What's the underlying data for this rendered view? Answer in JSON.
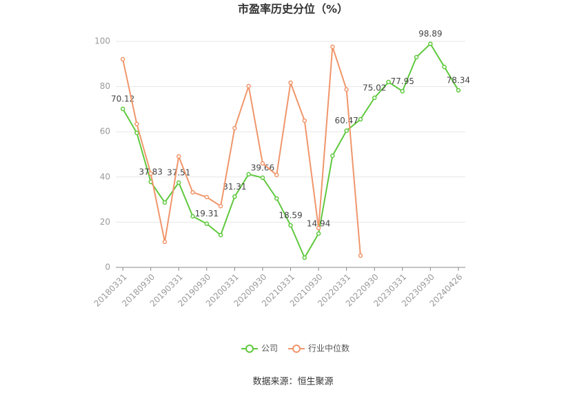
{
  "chart_data": {
    "type": "line",
    "title": "市盈率历史分位（%）",
    "categories": [
      "20180331",
      null,
      "20180930",
      null,
      "20190331",
      null,
      "20190930",
      null,
      "20200331",
      null,
      "20200930",
      null,
      "20210331",
      null,
      "20210930",
      null,
      "20220331",
      null,
      "20220930",
      null,
      "20230331",
      null,
      "20230930",
      null,
      "20240426"
    ],
    "series": [
      {
        "name": "公司",
        "color": "#5ec83c",
        "values": [
          70.12,
          59.5,
          37.83,
          28.7,
          37.51,
          22.6,
          19.31,
          14.3,
          31.31,
          41.2,
          39.66,
          30.5,
          18.59,
          4.3,
          14.94,
          49.4,
          60.47,
          65.5,
          75.02,
          82,
          77.95,
          93,
          98.89,
          88.7,
          78.34
        ]
      },
      {
        "name": "行业中位数",
        "color": "#f0956a",
        "values": [
          92.1,
          63.4,
          41.5,
          11.3,
          49.1,
          33.2,
          31.1,
          27.1,
          61.6,
          80.2,
          46,
          40.9,
          81.7,
          64.9,
          17.4,
          97.6,
          78.7,
          5.2,
          null,
          null,
          null,
          null,
          null,
          null,
          null
        ]
      }
    ],
    "ylim": [
      0,
      100
    ],
    "yticks": [
      0,
      20,
      40,
      60,
      80,
      100
    ],
    "grid": true,
    "source": "数据来源：恒生聚源"
  }
}
